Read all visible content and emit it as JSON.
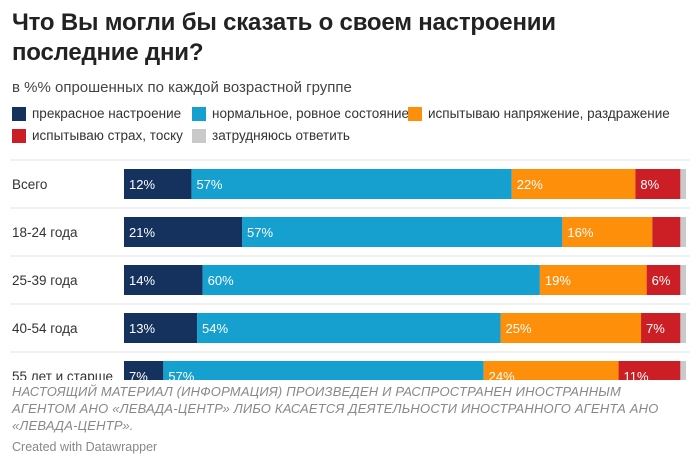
{
  "title": "Что Вы могли бы сказать о своем настроении последние дни?",
  "subtitle": "в %% опрошенных по каждой возрастной группе",
  "footer_note": "НАСТОЯЩИЙ МАТЕРИАЛ (ИНФОРМАЦИЯ) ПРОИЗВЕДЕН И РАСПРОСТРАНЕН ИНОСТРАННЫМ АГЕНТОМ АНО «ЛЕВАДА-ЦЕНТР» ЛИБО КАСАЕТСЯ ДЕЯТЕЛЬНОСТИ ИНОСТРАННОГО АГЕНТА АНО «ЛЕВАДА-ЦЕНТР».",
  "credit": "Created with Datawrapper",
  "chart_data": {
    "type": "bar",
    "orientation": "horizontal",
    "stacked": true,
    "title": "Что Вы могли бы сказать о своем настроении последние дни?",
    "subtitle": "в %% опрошенных по каждой возрастной группе",
    "categories": [
      "Всего",
      "18-24 года",
      "25-39 года",
      "40-54 года",
      "55 лет и старше"
    ],
    "xlim": [
      0,
      100
    ],
    "series": [
      {
        "name": "прекрасное настроение",
        "color": "#15325e",
        "values": [
          12,
          21,
          14,
          13,
          7
        ],
        "labels": [
          "12%",
          "21%",
          "14%",
          "13%",
          "7%"
        ]
      },
      {
        "name": "нормальное, ровное состояние",
        "color": "#16a0cf",
        "values": [
          57,
          57,
          60,
          54,
          57
        ],
        "labels": [
          "57%",
          "57%",
          "60%",
          "54%",
          "57%"
        ]
      },
      {
        "name": "испытываю напряжение, раздражение",
        "color": "#fd8f0a",
        "values": [
          22,
          16,
          19,
          25,
          24
        ],
        "labels": [
          "22%",
          "16%",
          "19%",
          "25%",
          "24%"
        ]
      },
      {
        "name": "испытываю страх, тоску",
        "color": "#cc1f25",
        "values": [
          8,
          5,
          6,
          7,
          11
        ],
        "labels": [
          "8%",
          "",
          "6%",
          "7%",
          "11%"
        ]
      },
      {
        "name": "затрудняюсь ответить",
        "color": "#c9c9c9",
        "values": [
          1,
          1,
          1,
          1,
          1
        ],
        "labels": [
          "",
          "",
          "",
          "",
          ""
        ]
      }
    ]
  }
}
